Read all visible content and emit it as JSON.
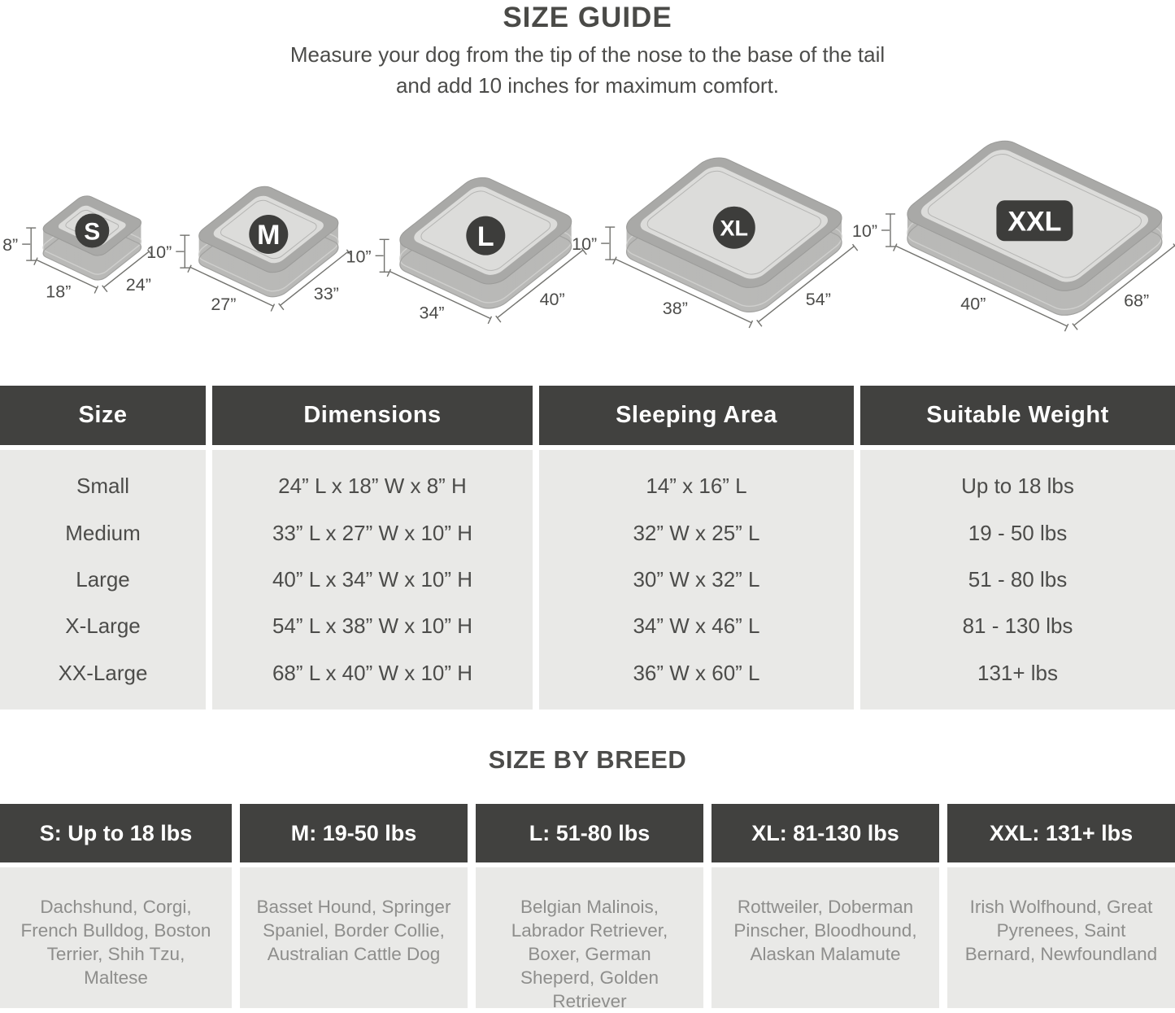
{
  "header": {
    "title": "SIZE GUIDE",
    "subtitle_line1": "Measure your dog from the tip of the nose to the base of the tail",
    "subtitle_line2": "and add 10 inches for maximum comfort."
  },
  "beds": [
    {
      "label": "S",
      "badge_shape": "circle",
      "height_label": "8”",
      "width_label": "18”",
      "length_label": "24”",
      "length_in": 24,
      "width_in": 18
    },
    {
      "label": "M",
      "badge_shape": "circle",
      "height_label": "10”",
      "width_label": "27”",
      "length_label": "33”",
      "length_in": 33,
      "width_in": 27
    },
    {
      "label": "L",
      "badge_shape": "circle",
      "height_label": "10”",
      "width_label": "34”",
      "length_label": "40”",
      "length_in": 40,
      "width_in": 34
    },
    {
      "label": "XL",
      "badge_shape": "circle",
      "height_label": "10”",
      "width_label": "38”",
      "length_label": "54”",
      "length_in": 54,
      "width_in": 38
    },
    {
      "label": "XXL",
      "badge_shape": "pill",
      "height_label": "10”",
      "width_label": "40”",
      "length_label": "68”",
      "length_in": 68,
      "width_in": 40
    }
  ],
  "size_table": {
    "headers": [
      "Size",
      "Dimensions",
      "Sleeping Area",
      "Suitable Weight"
    ],
    "rows": [
      [
        "Small",
        "24” L x 18” W x 8” H",
        "14” x 16” L",
        "Up to 18 lbs"
      ],
      [
        "Medium",
        "33” L x 27” W x 10” H",
        "32” W x 25” L",
        "19 - 50 lbs"
      ],
      [
        "Large",
        "40” L x 34” W x 10” H",
        "30” W x 32” L",
        "51 - 80 lbs"
      ],
      [
        "X-Large",
        "54” L x 38” W x 10” H",
        "34” W x 46” L",
        "81 - 130 lbs"
      ],
      [
        "XX-Large",
        "68” L x 40” W x 10” H",
        "36” W x 60” L",
        "131+ lbs"
      ]
    ]
  },
  "breed_section": {
    "title": "SIZE BY BREED",
    "columns": [
      {
        "header": "S: Up to 18 lbs",
        "breeds": "Dachshund, Corgi, French Bulldog, Boston Terrier, Shih Tzu, Maltese"
      },
      {
        "header": "M: 19-50 lbs",
        "breeds": "Basset Hound, Springer Spaniel, Border Collie, Australian Cattle Dog"
      },
      {
        "header": "L: 51-80 lbs",
        "breeds": "Belgian Malinois, Labrador Retriever, Boxer, German Sheperd, Golden Retriever"
      },
      {
        "header": "XL: 81-130 lbs",
        "breeds": "Rottweiler, Doberman Pinscher, Bloodhound, Alaskan Malamute"
      },
      {
        "header": "XXL: 131+ lbs",
        "breeds": "Irish Wolfhound, Great Pyrenees, Saint Bernard, Newfoundland"
      }
    ]
  },
  "colors": {
    "header_bg": "#41413f",
    "panel_bg": "#e9e9e7",
    "text_dark": "#4c4c4a",
    "text_light": "#8e8e8c",
    "bed_bolster": "#a9a9a7",
    "bed_side": "#b9b9b7",
    "bed_cushion": "#dcdcda",
    "bed_seam": "#cfcfcd",
    "bed_outline": "#9b9b99",
    "badge_bg": "#3d3d3b",
    "badge_text": "#ffffff",
    "dim_line": "#72726e"
  }
}
